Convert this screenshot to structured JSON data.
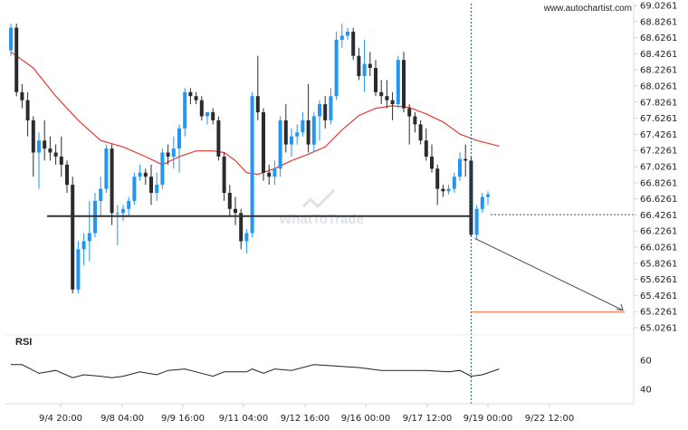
{
  "watermark_url": "www.autochartist.com",
  "brand_watermark": "WhatToTrade",
  "rsi_title": "RSI",
  "chart_data": {
    "type": "candlestick",
    "y_ticks": [
      "69.0261",
      "68.8261",
      "68.6261",
      "68.4261",
      "68.2261",
      "68.0261",
      "67.8261",
      "67.6261",
      "67.4261",
      "67.2261",
      "67.0261",
      "66.8261",
      "66.6261",
      "66.4261",
      "66.2261",
      "66.0261",
      "65.8261",
      "65.6261",
      "65.4261",
      "65.2261",
      "65.0261"
    ],
    "ylim": [
      65.0261,
      69.0261
    ],
    "x_labels": [
      "9/4 20:00",
      "9/8 04:00",
      "9/9 16:00",
      "9/11 04:00",
      "9/12 16:00",
      "9/16 00:00",
      "9/17 12:00",
      "9/19 00:00",
      "9/22 12:00"
    ],
    "rsi_ticks": [
      "60",
      "40"
    ],
    "rsi_ylim": [
      30,
      70
    ],
    "support_level": 66.41,
    "target_level": 65.22,
    "current_level": 66.43,
    "colors": {
      "bull": "#2196f3",
      "bear": "#2b2b2f",
      "ma": "#e53935",
      "target": "#ff7043",
      "level": "#333333",
      "projection": "#444a55",
      "rsi": "#222222"
    },
    "candles": [
      {
        "o": 68.47,
        "h": 68.8,
        "l": 68.4,
        "c": 68.75
      },
      {
        "o": 68.75,
        "h": 68.8,
        "l": 67.9,
        "c": 67.95
      },
      {
        "o": 67.95,
        "h": 68.05,
        "l": 67.75,
        "c": 67.85
      },
      {
        "o": 67.85,
        "h": 67.95,
        "l": 67.4,
        "c": 67.6
      },
      {
        "o": 67.6,
        "h": 67.65,
        "l": 66.9,
        "c": 67.2
      },
      {
        "o": 67.2,
        "h": 67.45,
        "l": 66.75,
        "c": 67.35
      },
      {
        "o": 67.35,
        "h": 67.6,
        "l": 67.1,
        "c": 67.25
      },
      {
        "o": 67.25,
        "h": 67.4,
        "l": 67.1,
        "c": 67.2
      },
      {
        "o": 67.2,
        "h": 67.3,
        "l": 67.05,
        "c": 67.15
      },
      {
        "o": 67.15,
        "h": 67.4,
        "l": 66.9,
        "c": 67.05
      },
      {
        "o": 67.05,
        "h": 67.1,
        "l": 66.7,
        "c": 66.8
      },
      {
        "o": 66.8,
        "h": 66.9,
        "l": 65.45,
        "c": 65.5
      },
      {
        "o": 65.5,
        "h": 66.1,
        "l": 65.45,
        "c": 66.0
      },
      {
        "o": 66.0,
        "h": 66.2,
        "l": 65.8,
        "c": 66.1
      },
      {
        "o": 66.1,
        "h": 66.6,
        "l": 65.85,
        "c": 66.2
      },
      {
        "o": 66.2,
        "h": 66.7,
        "l": 66.15,
        "c": 66.6
      },
      {
        "o": 66.6,
        "h": 66.9,
        "l": 66.4,
        "c": 66.75
      },
      {
        "o": 66.75,
        "h": 67.3,
        "l": 66.7,
        "c": 67.25
      },
      {
        "o": 67.25,
        "h": 67.3,
        "l": 66.3,
        "c": 66.45
      },
      {
        "o": 66.45,
        "h": 66.55,
        "l": 66.05,
        "c": 66.45
      },
      {
        "o": 66.45,
        "h": 66.55,
        "l": 66.35,
        "c": 66.5
      },
      {
        "o": 66.5,
        "h": 66.65,
        "l": 66.4,
        "c": 66.6
      },
      {
        "o": 66.6,
        "h": 66.95,
        "l": 66.55,
        "c": 66.9
      },
      {
        "o": 66.9,
        "h": 67.05,
        "l": 66.85,
        "c": 66.95
      },
      {
        "o": 66.95,
        "h": 67.0,
        "l": 66.8,
        "c": 66.9
      },
      {
        "o": 66.9,
        "h": 67.05,
        "l": 66.55,
        "c": 66.7
      },
      {
        "o": 66.7,
        "h": 66.95,
        "l": 66.6,
        "c": 66.8
      },
      {
        "o": 66.8,
        "h": 67.25,
        "l": 66.75,
        "c": 67.2
      },
      {
        "o": 67.2,
        "h": 67.3,
        "l": 67.05,
        "c": 67.15
      },
      {
        "o": 67.15,
        "h": 67.4,
        "l": 67.0,
        "c": 67.25
      },
      {
        "o": 67.25,
        "h": 67.55,
        "l": 66.95,
        "c": 67.5
      },
      {
        "o": 67.5,
        "h": 68.0,
        "l": 67.4,
        "c": 67.95
      },
      {
        "o": 67.95,
        "h": 68.0,
        "l": 67.8,
        "c": 67.9
      },
      {
        "o": 67.9,
        "h": 67.95,
        "l": 67.8,
        "c": 67.85
      },
      {
        "o": 67.85,
        "h": 67.9,
        "l": 67.6,
        "c": 67.65
      },
      {
        "o": 67.65,
        "h": 67.7,
        "l": 67.55,
        "c": 67.7
      },
      {
        "o": 67.7,
        "h": 67.75,
        "l": 67.55,
        "c": 67.6
      },
      {
        "o": 67.6,
        "h": 67.65,
        "l": 67.1,
        "c": 67.15
      },
      {
        "o": 67.15,
        "h": 67.2,
        "l": 66.6,
        "c": 66.7
      },
      {
        "o": 66.7,
        "h": 66.8,
        "l": 66.4,
        "c": 66.5
      },
      {
        "o": 66.5,
        "h": 66.65,
        "l": 66.3,
        "c": 66.45
      },
      {
        "o": 66.45,
        "h": 66.5,
        "l": 66.0,
        "c": 66.1
      },
      {
        "o": 66.1,
        "h": 66.25,
        "l": 65.95,
        "c": 66.2
      },
      {
        "o": 66.2,
        "h": 67.95,
        "l": 66.15,
        "c": 67.9
      },
      {
        "o": 67.9,
        "h": 68.4,
        "l": 67.6,
        "c": 67.7
      },
      {
        "o": 67.7,
        "h": 67.75,
        "l": 66.85,
        "c": 66.95
      },
      {
        "o": 66.95,
        "h": 67.05,
        "l": 66.8,
        "c": 66.9
      },
      {
        "o": 66.9,
        "h": 67.1,
        "l": 66.8,
        "c": 67.0
      },
      {
        "o": 67.0,
        "h": 67.65,
        "l": 66.9,
        "c": 67.6
      },
      {
        "o": 67.6,
        "h": 67.8,
        "l": 67.2,
        "c": 67.3
      },
      {
        "o": 67.3,
        "h": 67.5,
        "l": 67.15,
        "c": 67.4
      },
      {
        "o": 67.4,
        "h": 67.55,
        "l": 67.3,
        "c": 67.45
      },
      {
        "o": 67.45,
        "h": 67.7,
        "l": 67.4,
        "c": 67.6
      },
      {
        "o": 67.6,
        "h": 68.05,
        "l": 67.2,
        "c": 67.3
      },
      {
        "o": 67.3,
        "h": 67.7,
        "l": 67.2,
        "c": 67.65
      },
      {
        "o": 67.65,
        "h": 67.85,
        "l": 67.35,
        "c": 67.8
      },
      {
        "o": 67.8,
        "h": 67.9,
        "l": 67.5,
        "c": 67.6
      },
      {
        "o": 67.6,
        "h": 68.0,
        "l": 67.55,
        "c": 67.9
      },
      {
        "o": 67.9,
        "h": 68.7,
        "l": 67.85,
        "c": 68.6
      },
      {
        "o": 68.6,
        "h": 68.8,
        "l": 68.5,
        "c": 68.65
      },
      {
        "o": 68.65,
        "h": 68.75,
        "l": 68.6,
        "c": 68.7
      },
      {
        "o": 68.7,
        "h": 68.75,
        "l": 68.35,
        "c": 68.4
      },
      {
        "o": 68.4,
        "h": 68.5,
        "l": 68.1,
        "c": 68.15
      },
      {
        "o": 68.15,
        "h": 68.6,
        "l": 67.95,
        "c": 68.3
      },
      {
        "o": 68.3,
        "h": 68.45,
        "l": 68.15,
        "c": 68.25
      },
      {
        "o": 68.25,
        "h": 68.35,
        "l": 67.9,
        "c": 67.95
      },
      {
        "o": 67.95,
        "h": 68.1,
        "l": 67.8,
        "c": 67.9
      },
      {
        "o": 67.9,
        "h": 68.1,
        "l": 67.75,
        "c": 67.85
      },
      {
        "o": 67.85,
        "h": 67.95,
        "l": 67.6,
        "c": 67.8
      },
      {
        "o": 67.8,
        "h": 68.4,
        "l": 67.75,
        "c": 68.35
      },
      {
        "o": 68.35,
        "h": 68.45,
        "l": 67.7,
        "c": 67.75
      },
      {
        "o": 67.75,
        "h": 67.8,
        "l": 67.3,
        "c": 67.65
      },
      {
        "o": 67.65,
        "h": 67.7,
        "l": 67.45,
        "c": 67.55
      },
      {
        "o": 67.55,
        "h": 67.6,
        "l": 67.3,
        "c": 67.35
      },
      {
        "o": 67.35,
        "h": 67.5,
        "l": 67.1,
        "c": 67.15
      },
      {
        "o": 67.15,
        "h": 67.3,
        "l": 66.95,
        "c": 67.0
      },
      {
        "o": 67.0,
        "h": 67.05,
        "l": 66.55,
        "c": 66.75
      },
      {
        "o": 66.75,
        "h": 66.8,
        "l": 66.65,
        "c": 66.72
      },
      {
        "o": 66.72,
        "h": 66.8,
        "l": 66.68,
        "c": 66.75
      },
      {
        "o": 66.75,
        "h": 66.95,
        "l": 66.7,
        "c": 66.9
      },
      {
        "o": 66.9,
        "h": 67.2,
        "l": 66.85,
        "c": 67.12
      },
      {
        "o": 67.12,
        "h": 67.3,
        "l": 66.9,
        "c": 67.1
      },
      {
        "o": 67.1,
        "h": 67.15,
        "l": 66.15,
        "c": 66.18
      },
      {
        "o": 66.18,
        "h": 66.55,
        "l": 66.12,
        "c": 66.5
      },
      {
        "o": 66.5,
        "h": 66.7,
        "l": 66.45,
        "c": 66.65
      },
      {
        "o": 66.65,
        "h": 66.72,
        "l": 66.55,
        "c": 66.68
      }
    ],
    "moving_average": [
      {
        "i": 0,
        "v": 68.45
      },
      {
        "i": 4,
        "v": 68.25
      },
      {
        "i": 8,
        "v": 67.9
      },
      {
        "i": 12,
        "v": 67.6
      },
      {
        "i": 16,
        "v": 67.35
      },
      {
        "i": 20,
        "v": 67.27
      },
      {
        "i": 24,
        "v": 67.15
      },
      {
        "i": 27,
        "v": 67.05
      },
      {
        "i": 30,
        "v": 67.15
      },
      {
        "i": 33,
        "v": 67.22
      },
      {
        "i": 36,
        "v": 67.22
      },
      {
        "i": 38,
        "v": 67.2
      },
      {
        "i": 40,
        "v": 67.1
      },
      {
        "i": 42,
        "v": 66.95
      },
      {
        "i": 44,
        "v": 66.93
      },
      {
        "i": 47,
        "v": 67.0
      },
      {
        "i": 50,
        "v": 67.1
      },
      {
        "i": 53,
        "v": 67.18
      },
      {
        "i": 56,
        "v": 67.27
      },
      {
        "i": 59,
        "v": 67.48
      },
      {
        "i": 62,
        "v": 67.66
      },
      {
        "i": 65,
        "v": 67.75
      },
      {
        "i": 68,
        "v": 67.78
      },
      {
        "i": 71,
        "v": 67.76
      },
      {
        "i": 74,
        "v": 67.68
      },
      {
        "i": 77,
        "v": 67.58
      },
      {
        "i": 80,
        "v": 67.43
      },
      {
        "i": 83,
        "v": 67.35
      },
      {
        "i": 87,
        "v": 67.28
      }
    ],
    "rsi": [
      {
        "i": 0,
        "v": 57
      },
      {
        "i": 2,
        "v": 57
      },
      {
        "i": 5,
        "v": 51
      },
      {
        "i": 8,
        "v": 53
      },
      {
        "i": 11,
        "v": 48
      },
      {
        "i": 13,
        "v": 50
      },
      {
        "i": 16,
        "v": 49
      },
      {
        "i": 18,
        "v": 48
      },
      {
        "i": 20,
        "v": 49
      },
      {
        "i": 23,
        "v": 52
      },
      {
        "i": 26,
        "v": 50
      },
      {
        "i": 28,
        "v": 53
      },
      {
        "i": 31,
        "v": 54
      },
      {
        "i": 33,
        "v": 52
      },
      {
        "i": 36,
        "v": 49
      },
      {
        "i": 38,
        "v": 52
      },
      {
        "i": 42,
        "v": 52
      },
      {
        "i": 43,
        "v": 54
      },
      {
        "i": 45,
        "v": 51
      },
      {
        "i": 47,
        "v": 54
      },
      {
        "i": 50,
        "v": 53
      },
      {
        "i": 54,
        "v": 57
      },
      {
        "i": 58,
        "v": 56
      },
      {
        "i": 62,
        "v": 55
      },
      {
        "i": 66,
        "v": 53
      },
      {
        "i": 70,
        "v": 53
      },
      {
        "i": 74,
        "v": 53
      },
      {
        "i": 78,
        "v": 52
      },
      {
        "i": 80,
        "v": 53
      },
      {
        "i": 82,
        "v": 49
      },
      {
        "i": 84,
        "v": 50
      },
      {
        "i": 87,
        "v": 54
      }
    ]
  }
}
